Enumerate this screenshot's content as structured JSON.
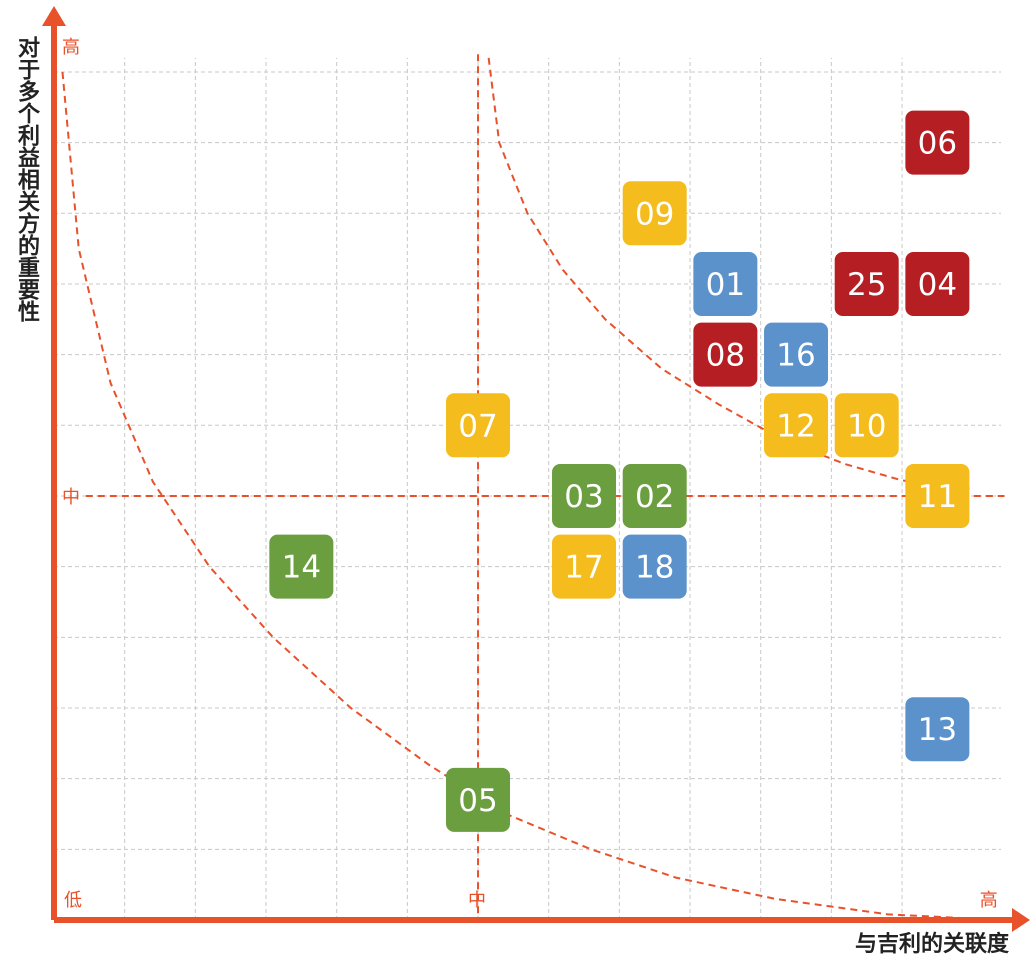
{
  "chart_data": {
    "type": "scatter",
    "title": "",
    "xlabel": "与吉利的关联度",
    "ylabel": "对于多个利益相关方的重要性",
    "x_ticks": [
      {
        "label": "低",
        "value": 0
      },
      {
        "label": "中",
        "value": 6
      },
      {
        "label": "高",
        "value": 13
      }
    ],
    "y_ticks": [
      {
        "label": "高",
        "value": 12
      },
      {
        "label": "中",
        "value": 6
      }
    ],
    "xlim": [
      0,
      13
    ],
    "ylim": [
      0,
      12
    ],
    "grid": true,
    "colors": {
      "green": "#6a9e3f",
      "yellow": "#f4bc1c",
      "blue": "#5b92cb",
      "red": "#b51f24",
      "axis": "#e8522b",
      "grid": "#c8c8c8"
    },
    "points": [
      {
        "label": "06",
        "x": 12.5,
        "y": 11,
        "color": "red"
      },
      {
        "label": "09",
        "x": 8.5,
        "y": 10,
        "color": "yellow"
      },
      {
        "label": "01",
        "x": 9.5,
        "y": 9,
        "color": "blue"
      },
      {
        "label": "25",
        "x": 11.5,
        "y": 9,
        "color": "red"
      },
      {
        "label": "04",
        "x": 12.5,
        "y": 9,
        "color": "red"
      },
      {
        "label": "08",
        "x": 9.5,
        "y": 8,
        "color": "red"
      },
      {
        "label": "16",
        "x": 10.5,
        "y": 8,
        "color": "blue"
      },
      {
        "label": "07",
        "x": 6,
        "y": 7,
        "color": "yellow"
      },
      {
        "label": "12",
        "x": 10.5,
        "y": 7,
        "color": "yellow"
      },
      {
        "label": "10",
        "x": 11.5,
        "y": 7,
        "color": "yellow"
      },
      {
        "label": "03",
        "x": 7.5,
        "y": 6,
        "color": "green"
      },
      {
        "label": "02",
        "x": 8.5,
        "y": 6,
        "color": "green"
      },
      {
        "label": "11",
        "x": 12.5,
        "y": 6,
        "color": "yellow"
      },
      {
        "label": "14",
        "x": 3.5,
        "y": 5,
        "color": "green"
      },
      {
        "label": "17",
        "x": 7.5,
        "y": 5,
        "color": "yellow"
      },
      {
        "label": "18",
        "x": 8.5,
        "y": 5,
        "color": "blue"
      },
      {
        "label": "13",
        "x": 12.5,
        "y": 2.7,
        "color": "blue"
      },
      {
        "label": "05",
        "x": 6,
        "y": 1.7,
        "color": "green"
      }
    ]
  }
}
